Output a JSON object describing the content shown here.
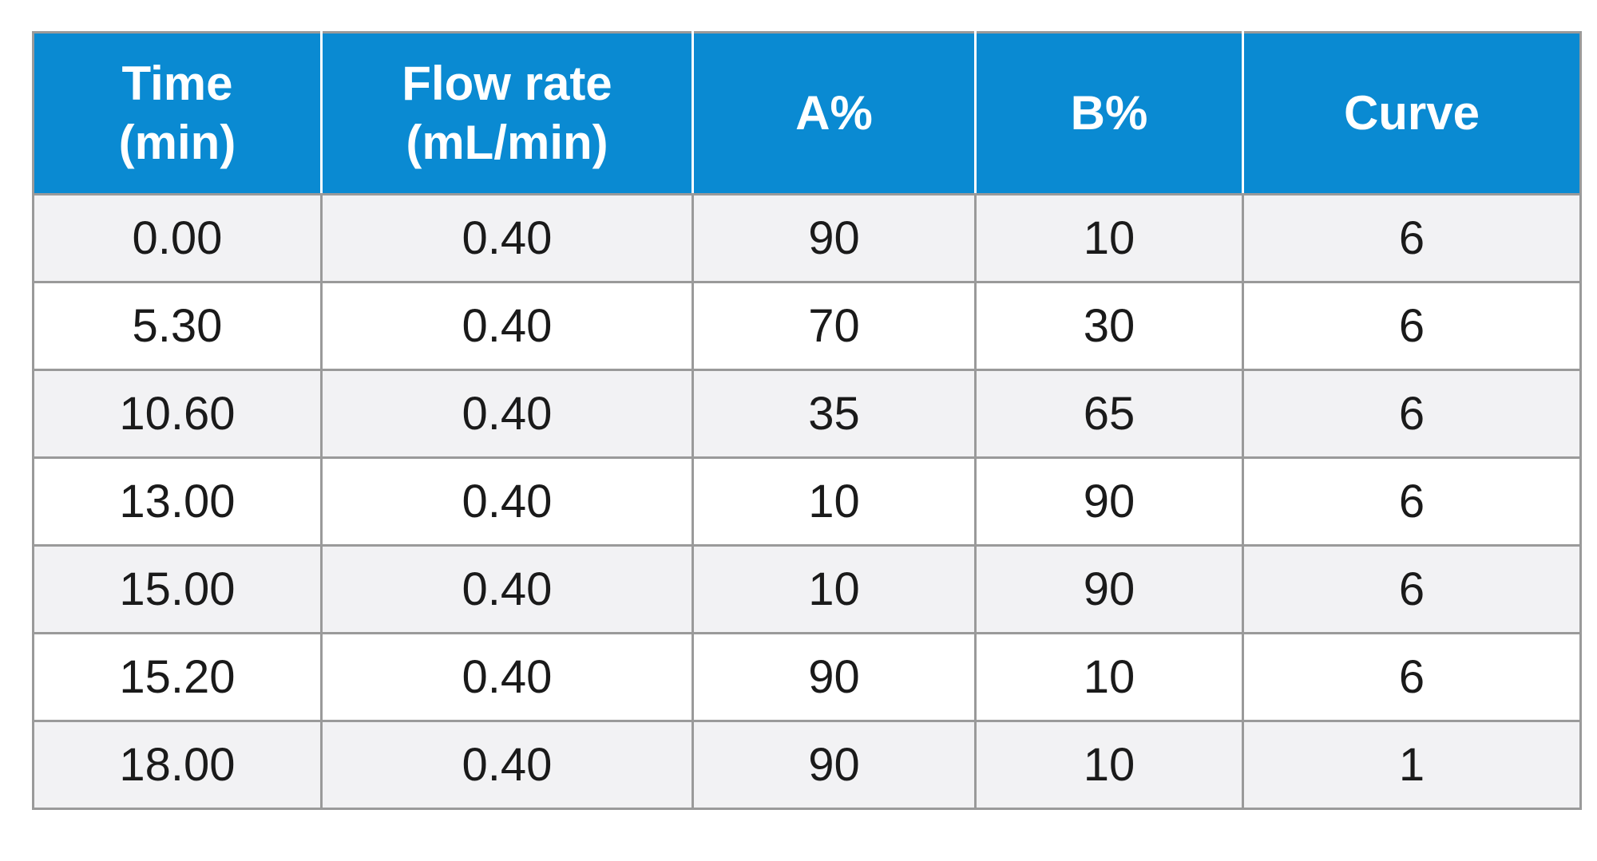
{
  "table": {
    "headers": [
      {
        "line1": "Time",
        "line2": "(min)"
      },
      {
        "line1": "Flow rate",
        "line2": "(mL/min)"
      },
      {
        "line1": "A%",
        "line2": ""
      },
      {
        "line1": "B%",
        "line2": ""
      },
      {
        "line1": "Curve",
        "line2": ""
      }
    ],
    "rows": [
      [
        "0.00",
        "0.40",
        "90",
        "10",
        "6"
      ],
      [
        "5.30",
        "0.40",
        "70",
        "30",
        "6"
      ],
      [
        "10.60",
        "0.40",
        "35",
        "65",
        "6"
      ],
      [
        "13.00",
        "0.40",
        "10",
        "90",
        "6"
      ],
      [
        "15.00",
        "0.40",
        "10",
        "90",
        "6"
      ],
      [
        "15.20",
        "0.40",
        "90",
        "10",
        "6"
      ],
      [
        "18.00",
        "0.40",
        "90",
        "10",
        "1"
      ]
    ]
  },
  "colors": {
    "header_background": "#0a8ad2",
    "header_text": "#ffffff",
    "row_shade": "#f2f2f4",
    "grid_lines": "#9a9a9a"
  }
}
